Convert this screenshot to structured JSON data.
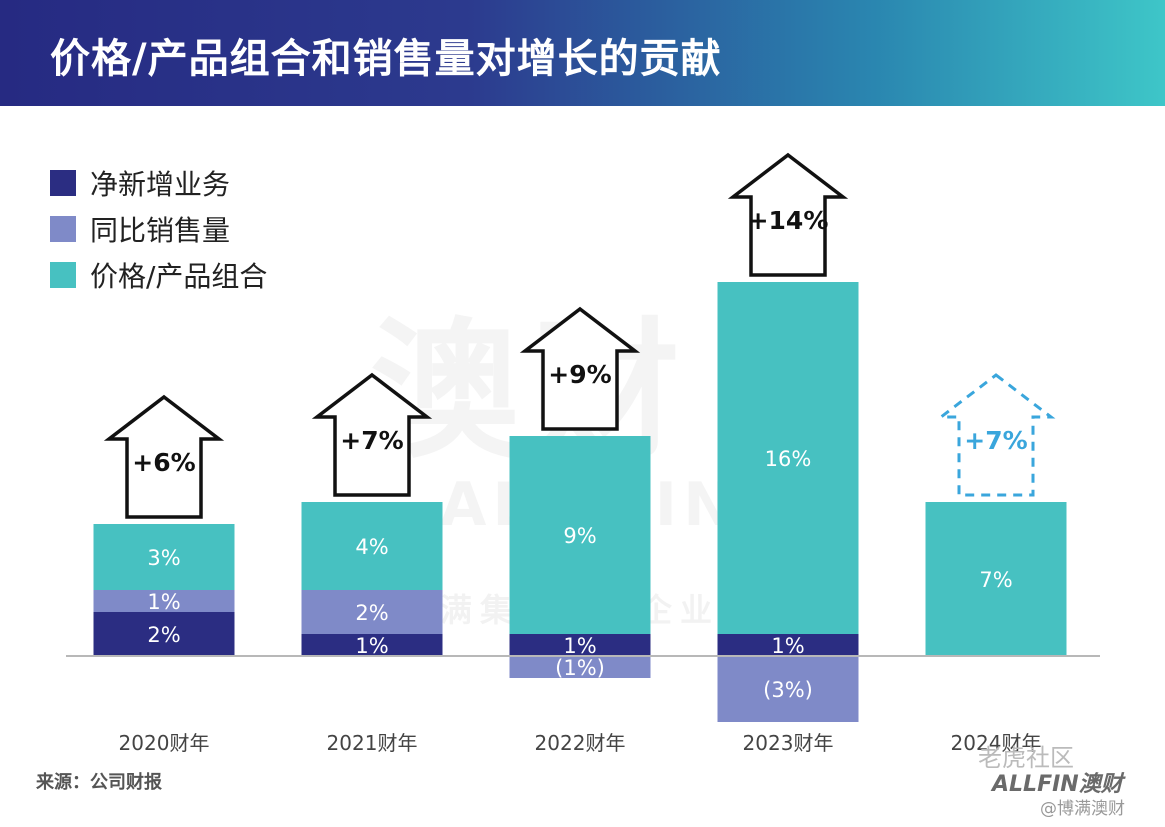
{
  "header": {
    "title": "价格/产品组合和销售量对增长的贡献"
  },
  "colors": {
    "net_new": "#2b2d82",
    "same_store": "#7f8ac8",
    "price_mix": "#47c1c1",
    "arrow_dashed": "#3aa6dc"
  },
  "legend": {
    "items": [
      {
        "label": "净新增业务"
      },
      {
        "label": "同比销售量"
      },
      {
        "label": "价格/产品组合"
      }
    ]
  },
  "watermark": {
    "main": "澳财",
    "sub": "ALL FIN",
    "sub2": "博满集团旗下企业"
  },
  "chart_data": {
    "type": "bar",
    "stacked": true,
    "categories": [
      "2020财年",
      "2021财年",
      "2022财年",
      "2023财年",
      "2024财年"
    ],
    "series": [
      {
        "name": "净新增业务",
        "values": [
          2,
          1,
          1,
          1,
          0
        ],
        "labels": [
          "2%",
          "1%",
          "1%",
          "1%",
          ""
        ]
      },
      {
        "name": "同比销售量",
        "values": [
          1,
          2,
          -1,
          -3,
          0
        ],
        "labels": [
          "1%",
          "2%",
          "(1%)",
          "(3%)",
          ""
        ]
      },
      {
        "name": "价格/产品组合",
        "values": [
          3,
          4,
          9,
          16,
          7
        ],
        "labels": [
          "3%",
          "4%",
          "9%",
          "16%",
          "7%"
        ]
      }
    ],
    "totals": [
      "+6%",
      "+7%",
      "+9%",
      "+14%",
      "+7%"
    ],
    "total_dashed": [
      false,
      false,
      false,
      false,
      true
    ],
    "ylim": [
      -3,
      18
    ]
  },
  "footer": {
    "source": "来源：公司财报",
    "brand": "ALLFIN澳财",
    "handle_tag": "老虎社区",
    "handle": "@博满澳财"
  }
}
